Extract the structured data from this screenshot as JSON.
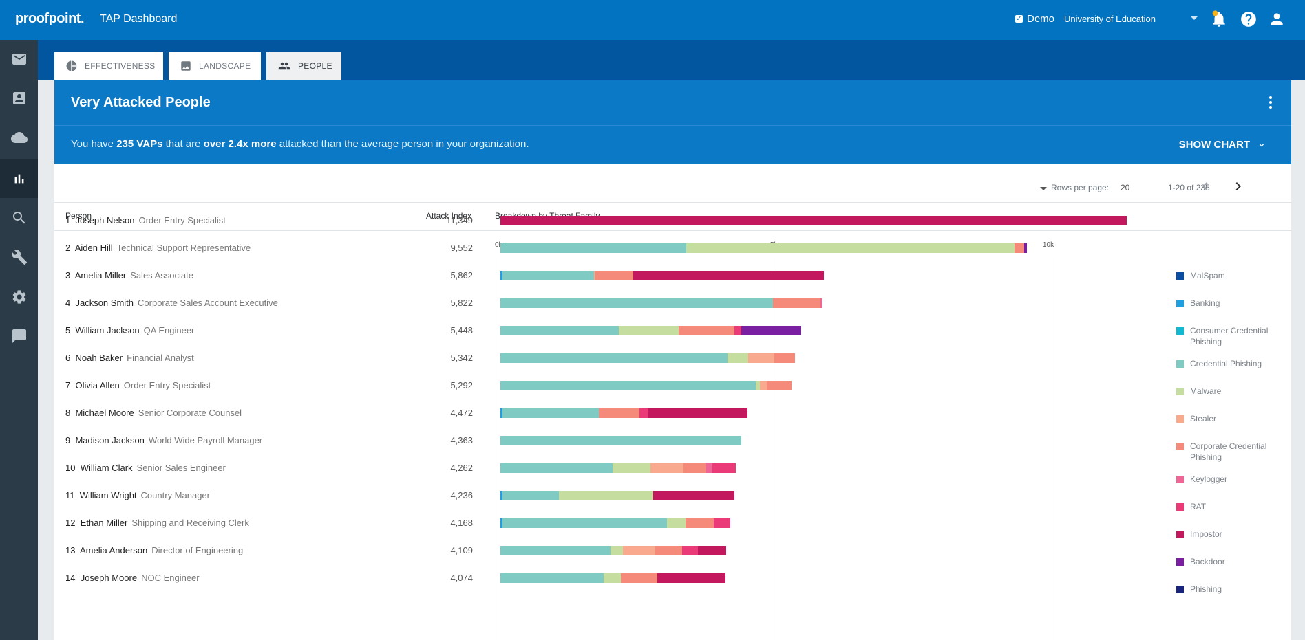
{
  "header": {
    "logo": "proofpoint.",
    "app_title": "TAP Dashboard",
    "demo_label": "Demo",
    "org_name": "University of Education",
    "icons": [
      "notification-bell-icon",
      "help-icon",
      "user-account-icon"
    ]
  },
  "sidebar": {
    "items": [
      {
        "icon": "mail-icon"
      },
      {
        "icon": "contact-card-icon"
      },
      {
        "icon": "cloud-icon"
      },
      {
        "icon": "bar-chart-icon",
        "active": true
      },
      {
        "icon": "search-icon"
      },
      {
        "icon": "wrench-icon"
      },
      {
        "icon": "gear-icon"
      },
      {
        "icon": "message-icon"
      }
    ]
  },
  "tabs": [
    {
      "label": "EFFECTIVENESS",
      "icon": "pie-chart-icon"
    },
    {
      "label": "LANDSCAPE",
      "icon": "image-icon"
    },
    {
      "label": "PEOPLE",
      "icon": "people-icon",
      "active": true
    }
  ],
  "card": {
    "title": "Very Attacked People",
    "summary_prefix": "You have",
    "summary_count": "235 VAPs",
    "summary_mid": "that are",
    "summary_multiplier": "over 2.4x more",
    "summary_suffix": "attacked than the average person in your organization.",
    "show_chart_label": "SHOW CHART"
  },
  "pagination": {
    "rows_per_page_label": "Rows per page:",
    "rows_per_page": "20",
    "range": "1-20 of 235"
  },
  "columns": {
    "person": "Person",
    "attack_index": "Attack Index",
    "breakdown": "Breakdown by Threat Family"
  },
  "axis": {
    "ticks": [
      "0k",
      "5k",
      "10k"
    ]
  },
  "colors": {
    "malspam": "#0a4ea3",
    "banking": "#1e9fe0",
    "consumer_credential_phishing": "#13b8d2",
    "credential_phishing": "#7fcac2",
    "malware": "#c5dea0",
    "stealer": "#f9a98e",
    "corporate_credential_phishing": "#f58a7a",
    "keylogger": "#ef6595",
    "rat": "#ea3a78",
    "impostor": "#c4185e",
    "backdoor": "#7b1fa2",
    "phishing": "#1a237e"
  },
  "legend": [
    {
      "key": "malspam",
      "label": "MalSpam"
    },
    {
      "key": "banking",
      "label": "Banking"
    },
    {
      "key": "consumer_credential_phishing",
      "label": "Consumer Credential Phishing"
    },
    {
      "key": "credential_phishing",
      "label": "Credential Phishing"
    },
    {
      "key": "malware",
      "label": "Malware"
    },
    {
      "key": "stealer",
      "label": "Stealer"
    },
    {
      "key": "corporate_credential_phishing",
      "label": "Corporate Credential Phishing"
    },
    {
      "key": "keylogger",
      "label": "Keylogger"
    },
    {
      "key": "rat",
      "label": "RAT"
    },
    {
      "key": "impostor",
      "label": "Impostor"
    },
    {
      "key": "backdoor",
      "label": "Backdoor"
    },
    {
      "key": "phishing",
      "label": "Phishing"
    }
  ],
  "chart_data": {
    "type": "bar",
    "orientation": "horizontal",
    "stacked": true,
    "title": "Breakdown by Threat Family",
    "xlim": [
      0,
      12000
    ],
    "x_ticks": [
      "0k",
      "5k",
      "10k"
    ],
    "series_order": [
      "malspam",
      "banking",
      "consumer_credential_phishing",
      "credential_phishing",
      "malware",
      "stealer",
      "corporate_credential_phishing",
      "keylogger",
      "rat",
      "impostor",
      "backdoor",
      "phishing"
    ],
    "rows": [
      {
        "rank": "1",
        "name": "Joseph Nelson",
        "role": "Order Entry Specialist",
        "index": "11,349",
        "segments": [
          {
            "k": "impostor",
            "v": 11349
          }
        ]
      },
      {
        "rank": "2",
        "name": "Aiden Hill",
        "role": "Technical Support Representative",
        "index": "9,552",
        "segments": [
          {
            "k": "credential_phishing",
            "v": 3370
          },
          {
            "k": "malware",
            "v": 5950
          },
          {
            "k": "corporate_credential_phishing",
            "v": 180
          },
          {
            "k": "backdoor",
            "v": 52
          }
        ]
      },
      {
        "rank": "3",
        "name": "Amelia Miller",
        "role": "Sales Associate",
        "index": "5,862",
        "segments": [
          {
            "k": "banking",
            "v": 40
          },
          {
            "k": "credential_phishing",
            "v": 1660
          },
          {
            "k": "stealer",
            "v": 30
          },
          {
            "k": "corporate_credential_phishing",
            "v": 680
          },
          {
            "k": "impostor",
            "v": 3452
          }
        ]
      },
      {
        "rank": "4",
        "name": "Jackson Smith",
        "role": "Corporate Sales Account Executive",
        "index": "5,822",
        "segments": [
          {
            "k": "credential_phishing",
            "v": 4940
          },
          {
            "k": "corporate_credential_phishing",
            "v": 860
          },
          {
            "k": "keylogger",
            "v": 22
          }
        ]
      },
      {
        "rank": "5",
        "name": "William Jackson",
        "role": "QA Engineer",
        "index": "5,448",
        "segments": [
          {
            "k": "credential_phishing",
            "v": 2140
          },
          {
            "k": "malware",
            "v": 1080
          },
          {
            "k": "corporate_credential_phishing",
            "v": 1010
          },
          {
            "k": "rat",
            "v": 130
          },
          {
            "k": "backdoor",
            "v": 1088
          }
        ]
      },
      {
        "rank": "6",
        "name": "Noah Baker",
        "role": "Financial Analyst",
        "index": "5,342",
        "segments": [
          {
            "k": "credential_phishing",
            "v": 4120
          },
          {
            "k": "malware",
            "v": 380
          },
          {
            "k": "stealer",
            "v": 470
          },
          {
            "k": "corporate_credential_phishing",
            "v": 372
          }
        ]
      },
      {
        "rank": "7",
        "name": "Olivia Allen",
        "role": "Order Entry Specialist",
        "index": "5,292",
        "segments": [
          {
            "k": "credential_phishing",
            "v": 4630
          },
          {
            "k": "malware",
            "v": 80
          },
          {
            "k": "stealer",
            "v": 130
          },
          {
            "k": "corporate_credential_phishing",
            "v": 452
          }
        ]
      },
      {
        "rank": "8",
        "name": "Michael Moore",
        "role": "Senior Corporate Counsel",
        "index": "4,472",
        "segments": [
          {
            "k": "banking",
            "v": 40
          },
          {
            "k": "credential_phishing",
            "v": 1740
          },
          {
            "k": "corporate_credential_phishing",
            "v": 730
          },
          {
            "k": "rat",
            "v": 150
          },
          {
            "k": "impostor",
            "v": 1812
          }
        ]
      },
      {
        "rank": "9",
        "name": "Madison Jackson",
        "role": "World Wide Payroll Manager",
        "index": "4,363",
        "segments": [
          {
            "k": "credential_phishing",
            "v": 4363
          }
        ]
      },
      {
        "rank": "10",
        "name": "William Clark",
        "role": "Senior Sales Engineer",
        "index": "4,262",
        "segments": [
          {
            "k": "credential_phishing",
            "v": 2030
          },
          {
            "k": "malware",
            "v": 690
          },
          {
            "k": "stealer",
            "v": 600
          },
          {
            "k": "corporate_credential_phishing",
            "v": 410
          },
          {
            "k": "keylogger",
            "v": 110
          },
          {
            "k": "rat",
            "v": 422
          }
        ]
      },
      {
        "rank": "11",
        "name": "William Wright",
        "role": "Country Manager",
        "index": "4,236",
        "segments": [
          {
            "k": "banking",
            "v": 40
          },
          {
            "k": "credential_phishing",
            "v": 1020
          },
          {
            "k": "malware",
            "v": 1710
          },
          {
            "k": "impostor",
            "v": 1466
          }
        ]
      },
      {
        "rank": "12",
        "name": "Ethan Miller",
        "role": "Shipping and Receiving Clerk",
        "index": "4,168",
        "segments": [
          {
            "k": "banking",
            "v": 40
          },
          {
            "k": "credential_phishing",
            "v": 2980
          },
          {
            "k": "malware",
            "v": 340
          },
          {
            "k": "corporate_credential_phishing",
            "v": 510
          },
          {
            "k": "rat",
            "v": 298
          }
        ]
      },
      {
        "rank": "13",
        "name": "Amelia Anderson",
        "role": "Director of Engineering",
        "index": "4,109",
        "segments": [
          {
            "k": "credential_phishing",
            "v": 2000
          },
          {
            "k": "malware",
            "v": 230
          },
          {
            "k": "stealer",
            "v": 590
          },
          {
            "k": "corporate_credential_phishing",
            "v": 490
          },
          {
            "k": "rat",
            "v": 290
          },
          {
            "k": "impostor",
            "v": 509
          }
        ]
      },
      {
        "rank": "14",
        "name": "Joseph Moore",
        "role": "NOC Engineer",
        "index": "4,074",
        "segments": [
          {
            "k": "credential_phishing",
            "v": 1870
          },
          {
            "k": "malware",
            "v": 310
          },
          {
            "k": "corporate_credential_phishing",
            "v": 660
          },
          {
            "k": "impostor",
            "v": 1234
          }
        ]
      }
    ]
  }
}
